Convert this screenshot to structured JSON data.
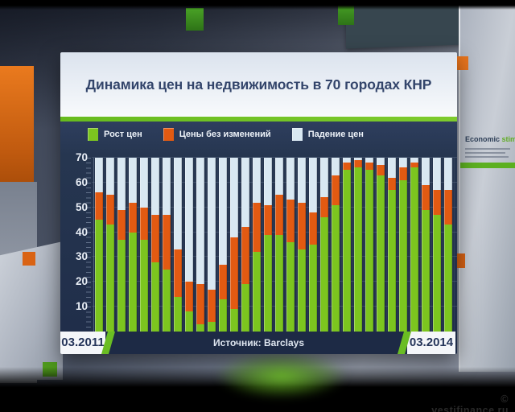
{
  "watermark": "© vestifinance.ru",
  "background": {
    "right_panel_text_primary": "Economic",
    "right_panel_text_accent": " stimulus pa"
  },
  "card": {
    "title": "Динамика цен на недвижимость в 70 городах КНР",
    "source": "Источник: Barclays",
    "x_start_label": "03.2011",
    "x_end_label": "03.2014"
  },
  "legend": [
    {
      "label": "Рост цен",
      "color": "#7cc51f"
    },
    {
      "label": "Цены без изменений",
      "color": "#e25a12"
    },
    {
      "label": "Падение цен",
      "color": "#d9e8f2"
    }
  ],
  "chart_data": {
    "type": "bar",
    "stacked": true,
    "title": "Динамика цен на недвижимость в 70 городах КНР",
    "subtitle": "",
    "xlabel": "",
    "ylabel": "",
    "ylim": [
      0,
      70
    ],
    "yticks": [
      10,
      20,
      30,
      40,
      50,
      60,
      70
    ],
    "grid": true,
    "legend_position": "top",
    "n_bars": 32,
    "x_axis_visible_labels": [
      "03.2011",
      "03.2014"
    ],
    "bar_total_cities": 70,
    "series": [
      {
        "name": "Рост цен",
        "color": "#7cc51f",
        "values": [
          45,
          43,
          37,
          40,
          37,
          28,
          25,
          14,
          8,
          3,
          4,
          13,
          9,
          19,
          32,
          39,
          39,
          36,
          33,
          35,
          46,
          51,
          65,
          66,
          65,
          63,
          57,
          61,
          66,
          49,
          47,
          43
        ]
      },
      {
        "name": "Цены без изменений",
        "color": "#e25a12",
        "values": [
          11,
          12,
          12,
          12,
          13,
          19,
          22,
          19,
          12,
          16,
          13,
          14,
          29,
          23,
          20,
          12,
          16,
          17,
          19,
          13,
          8,
          12,
          3,
          3,
          3,
          4,
          5,
          5,
          2,
          10,
          10,
          14
        ]
      },
      {
        "name": "Падение цен",
        "color": "#d9e8f2",
        "values": [
          14,
          15,
          21,
          18,
          20,
          23,
          23,
          37,
          50,
          51,
          53,
          43,
          32,
          28,
          18,
          19,
          15,
          17,
          18,
          22,
          16,
          7,
          2,
          1,
          2,
          3,
          8,
          4,
          2,
          11,
          13,
          13
        ]
      }
    ],
    "source": "Источник: Barclays"
  }
}
